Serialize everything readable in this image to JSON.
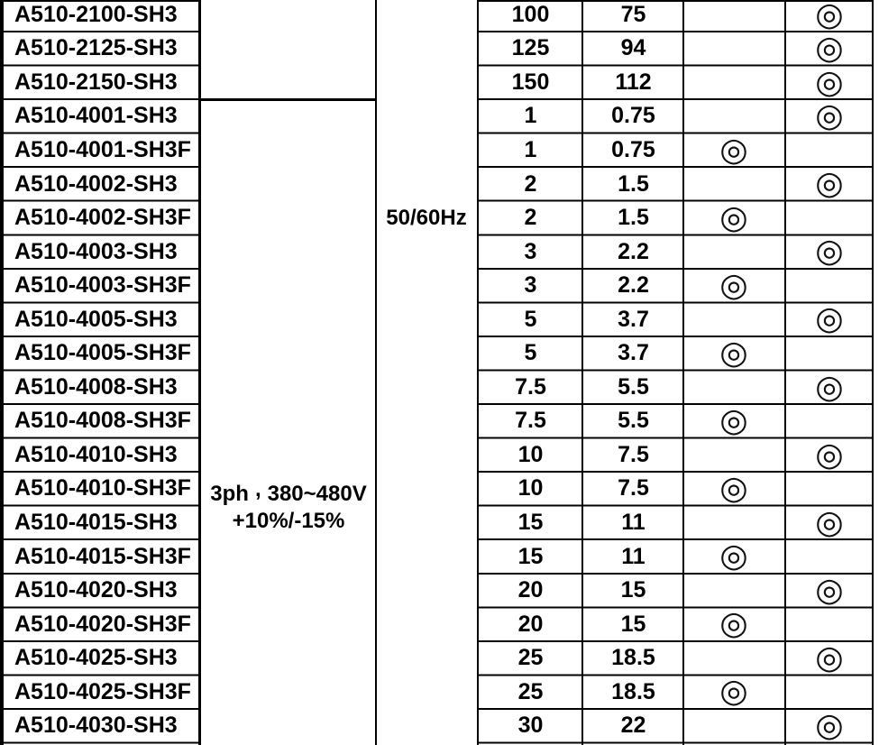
{
  "frequency": {
    "value": "50/60Hz"
  },
  "voltage": {
    "phase": "3ph",
    "separator": ",",
    "range": "380~480V",
    "tolerance": "+10%/-15%"
  },
  "mark_symbol": "◎",
  "rows": [
    {
      "model": "A510-2100-SH3",
      "hp": "100",
      "kw": "75",
      "mark_a": "",
      "mark_b": "◎"
    },
    {
      "model": "A510-2125-SH3",
      "hp": "125",
      "kw": "94",
      "mark_a": "",
      "mark_b": "◎"
    },
    {
      "model": "A510-2150-SH3",
      "hp": "150",
      "kw": "112",
      "mark_a": "",
      "mark_b": "◎"
    },
    {
      "model": "A510-4001-SH3",
      "hp": "1",
      "kw": "0.75",
      "mark_a": "",
      "mark_b": "◎"
    },
    {
      "model": "A510-4001-SH3F",
      "hp": "1",
      "kw": "0.75",
      "mark_a": "◎",
      "mark_b": ""
    },
    {
      "model": "A510-4002-SH3",
      "hp": "2",
      "kw": "1.5",
      "mark_a": "",
      "mark_b": "◎"
    },
    {
      "model": "A510-4002-SH3F",
      "hp": "2",
      "kw": "1.5",
      "mark_a": "◎",
      "mark_b": ""
    },
    {
      "model": "A510-4003-SH3",
      "hp": "3",
      "kw": "2.2",
      "mark_a": "",
      "mark_b": "◎"
    },
    {
      "model": "A510-4003-SH3F",
      "hp": "3",
      "kw": "2.2",
      "mark_a": "◎",
      "mark_b": ""
    },
    {
      "model": "A510-4005-SH3",
      "hp": "5",
      "kw": "3.7",
      "mark_a": "",
      "mark_b": "◎"
    },
    {
      "model": "A510-4005-SH3F",
      "hp": "5",
      "kw": "3.7",
      "mark_a": "◎",
      "mark_b": ""
    },
    {
      "model": "A510-4008-SH3",
      "hp": "7.5",
      "kw": "5.5",
      "mark_a": "",
      "mark_b": "◎"
    },
    {
      "model": "A510-4008-SH3F",
      "hp": "7.5",
      "kw": "5.5",
      "mark_a": "◎",
      "mark_b": ""
    },
    {
      "model": "A510-4010-SH3",
      "hp": "10",
      "kw": "7.5",
      "mark_a": "",
      "mark_b": "◎"
    },
    {
      "model": "A510-4010-SH3F",
      "hp": "10",
      "kw": "7.5",
      "mark_a": "◎",
      "mark_b": ""
    },
    {
      "model": "A510-4015-SH3",
      "hp": "15",
      "kw": "11",
      "mark_a": "",
      "mark_b": "◎"
    },
    {
      "model": "A510-4015-SH3F",
      "hp": "15",
      "kw": "11",
      "mark_a": "◎",
      "mark_b": ""
    },
    {
      "model": "A510-4020-SH3",
      "hp": "20",
      "kw": "15",
      "mark_a": "",
      "mark_b": "◎"
    },
    {
      "model": "A510-4020-SH3F",
      "hp": "20",
      "kw": "15",
      "mark_a": "◎",
      "mark_b": ""
    },
    {
      "model": "A510-4025-SH3",
      "hp": "25",
      "kw": "18.5",
      "mark_a": "",
      "mark_b": "◎"
    },
    {
      "model": "A510-4025-SH3F",
      "hp": "25",
      "kw": "18.5",
      "mark_a": "◎",
      "mark_b": ""
    },
    {
      "model": "A510-4030-SH3",
      "hp": "30",
      "kw": "22",
      "mark_a": "",
      "mark_b": "◎"
    }
  ]
}
